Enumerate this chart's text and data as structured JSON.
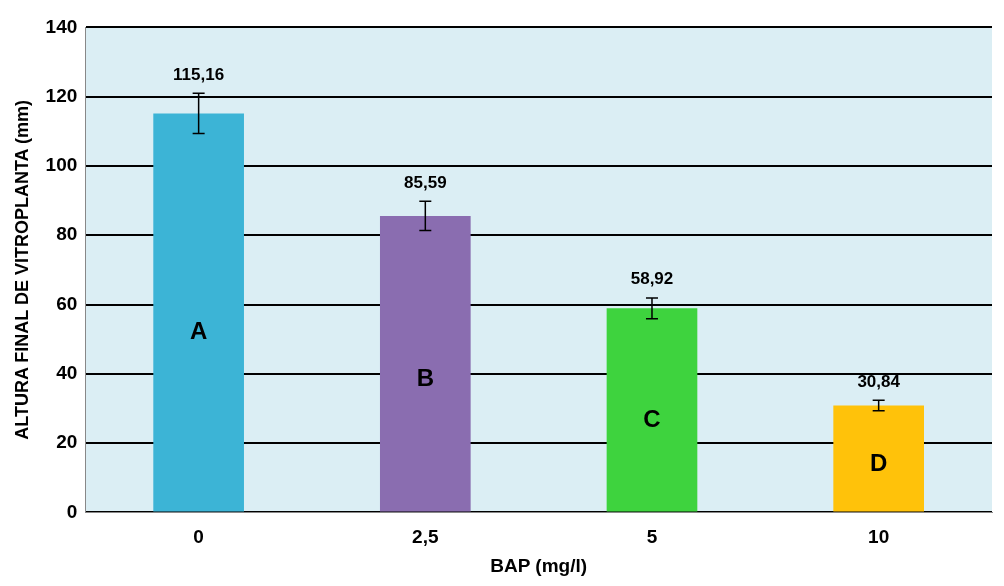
{
  "chart_data": {
    "type": "bar",
    "xlabel": "BAP (mg/l)",
    "ylabel": "ALTURA FINAL DE VITROPLANTA (mm)",
    "categories": [
      "0",
      "2,5",
      "5",
      "10"
    ],
    "values": [
      115.16,
      85.59,
      58.92,
      30.84
    ],
    "colors": [
      "#3cb4d6",
      "#8a6db0",
      "#3ed33e",
      "#ffc20a"
    ],
    "errors": [
      5.8,
      4.2,
      3,
      1.5
    ],
    "value_labels": [
      "115,16",
      "85,59",
      "58,92",
      "30,84"
    ],
    "ylim": [
      0,
      140
    ],
    "yticks": [
      0,
      20,
      40,
      60,
      80,
      100,
      120,
      140
    ],
    "grid": "y",
    "annotations": [
      "A",
      "B",
      "C",
      "D"
    ]
  }
}
